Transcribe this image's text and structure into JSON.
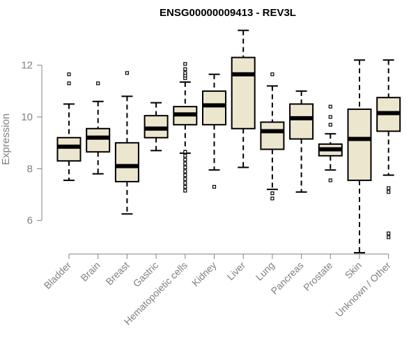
{
  "chart_data": {
    "type": "boxplot",
    "title": "ENSG00000009413 - REV3L",
    "xlabel": "",
    "ylabel": "Expression",
    "ylim": [
      4.7,
      13.5
    ],
    "yticks": [
      6,
      8,
      10,
      12
    ],
    "grid": false,
    "box_fill": "#ede6cf",
    "box_stroke": "#000000",
    "median_color": "#000000",
    "categories": [
      "Bladder",
      "Brain",
      "Breast",
      "Gastric",
      "Hematopoietic cells",
      "Kidney",
      "Liver",
      "Lung",
      "Pancreas",
      "Prostate",
      "Skin",
      "Unknown / Other"
    ],
    "boxes": [
      {
        "label": "Bladder",
        "whisker_low": 7.55,
        "q1": 8.3,
        "median": 8.85,
        "q3": 9.2,
        "whisker_high": 10.5,
        "outliers": [
          11.3,
          11.65
        ]
      },
      {
        "label": "Brain",
        "whisker_low": 7.8,
        "q1": 8.65,
        "median": 9.2,
        "q3": 9.55,
        "whisker_high": 10.6,
        "outliers": [
          11.3
        ]
      },
      {
        "label": "Breast",
        "whisker_low": 6.25,
        "q1": 7.5,
        "median": 8.1,
        "q3": 9.0,
        "whisker_high": 10.8,
        "outliers": [
          11.7
        ]
      },
      {
        "label": "Gastric",
        "whisker_low": 8.7,
        "q1": 9.2,
        "median": 9.55,
        "q3": 10.05,
        "whisker_high": 10.55,
        "outliers": []
      },
      {
        "label": "Hematopoietic cells",
        "whisker_low": 8.6,
        "q1": 9.7,
        "median": 10.1,
        "q3": 10.4,
        "whisker_high": 11.35,
        "outliers": [
          7.15,
          7.3,
          7.45,
          7.6,
          7.75,
          7.9,
          8.05,
          8.2,
          8.35,
          8.5,
          8.65,
          11.5,
          11.6,
          11.7,
          11.85,
          12.05
        ]
      },
      {
        "label": "Kidney",
        "whisker_low": 7.95,
        "q1": 9.7,
        "median": 10.45,
        "q3": 11.0,
        "whisker_high": 11.65,
        "outliers": [
          7.3
        ]
      },
      {
        "label": "Liver",
        "whisker_low": 8.05,
        "q1": 9.55,
        "median": 11.65,
        "q3": 12.3,
        "whisker_high": 13.35,
        "outliers": []
      },
      {
        "label": "Lung",
        "whisker_low": 7.2,
        "q1": 8.75,
        "median": 9.45,
        "q3": 9.8,
        "whisker_high": 11.2,
        "outliers": [
          6.85,
          7.05,
          11.65
        ]
      },
      {
        "label": "Pancreas",
        "whisker_low": 7.1,
        "q1": 9.15,
        "median": 9.95,
        "q3": 10.5,
        "whisker_high": 11.0,
        "outliers": []
      },
      {
        "label": "Prostate",
        "whisker_low": 7.95,
        "q1": 8.5,
        "median": 8.75,
        "q3": 8.95,
        "whisker_high": 9.35,
        "outliers": [
          7.55,
          9.7,
          10.0,
          10.4
        ]
      },
      {
        "label": "Skin",
        "whisker_low": 4.75,
        "q1": 7.55,
        "median": 9.15,
        "q3": 10.3,
        "whisker_high": 12.2,
        "outliers": []
      },
      {
        "label": "Unknown / Other",
        "whisker_low": 7.75,
        "q1": 9.45,
        "median": 10.15,
        "q3": 10.75,
        "whisker_high": 12.2,
        "outliers": [
          5.35,
          5.5,
          7.1,
          7.25
        ]
      }
    ]
  }
}
